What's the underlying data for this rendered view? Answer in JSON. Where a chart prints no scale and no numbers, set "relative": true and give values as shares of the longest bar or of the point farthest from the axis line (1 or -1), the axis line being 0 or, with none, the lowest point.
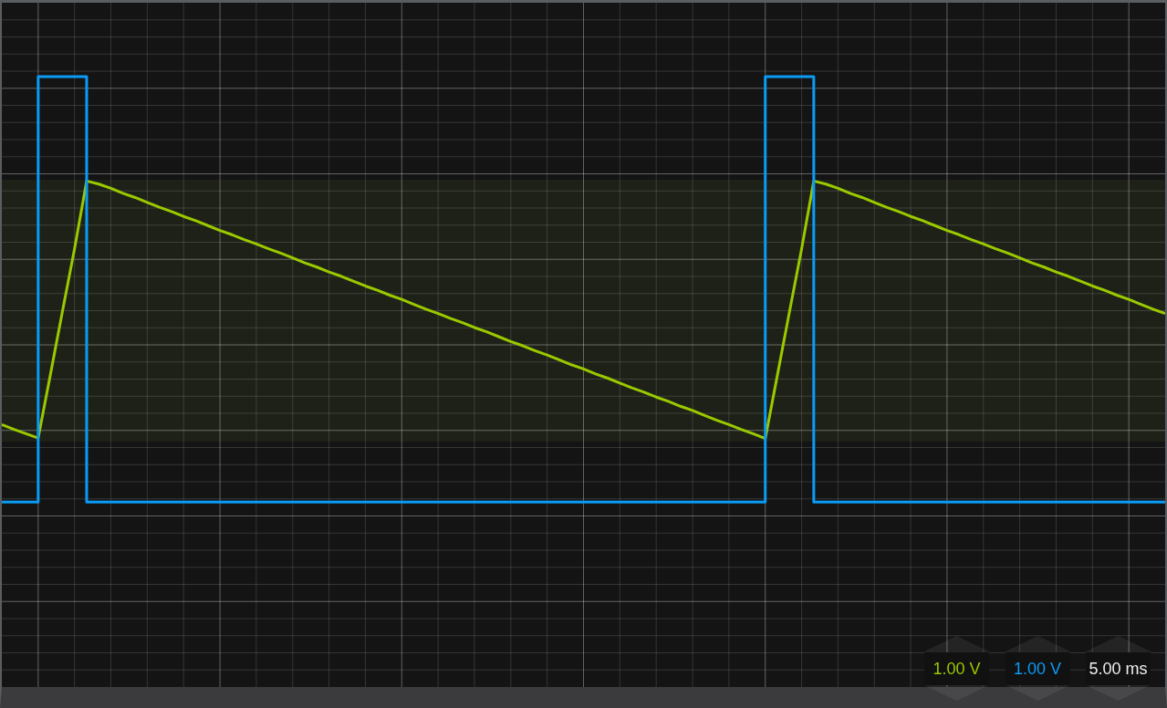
{
  "chart_data": {
    "type": "line",
    "relative": true,
    "categories": [
      null,
      null,
      null,
      null,
      null,
      null,
      null,
      null,
      null,
      null,
      null,
      null,
      null,
      null,
      null,
      null,
      null,
      null,
      null,
      null,
      null,
      null,
      null,
      null,
      null,
      null,
      null,
      null,
      null,
      null,
      null,
      null,
      null,
      null,
      null,
      null,
      null,
      null,
      null,
      null,
      null,
      null,
      null,
      null,
      null,
      null,
      null,
      null,
      null,
      null,
      null,
      null,
      null,
      null,
      null,
      null,
      null,
      null,
      null,
      null,
      null,
      null,
      null,
      null,
      null,
      null,
      null,
      null,
      null,
      null,
      null,
      null,
      null,
      null,
      null,
      null,
      null,
      null,
      null,
      null,
      null,
      null,
      null,
      null,
      null,
      null,
      null,
      null,
      null,
      null,
      null,
      null,
      null,
      null,
      null,
      null,
      null
    ],
    "series": [
      {
        "name": "1.00 V",
        "color": "#9bc900",
        "values": [
          0.43,
          0.422,
          0.415,
          0.408,
          0.511,
          0.615,
          0.718,
          0.829,
          0.824,
          0.817,
          0.809,
          0.802,
          0.794,
          0.786,
          0.779,
          0.771,
          0.764,
          0.756,
          0.748,
          0.741,
          0.733,
          0.726,
          0.718,
          0.711,
          0.703,
          0.695,
          0.688,
          0.68,
          0.673,
          0.665,
          0.657,
          0.65,
          0.642,
          0.635,
          0.627,
          0.619,
          0.612,
          0.604,
          0.597,
          0.589,
          0.582,
          0.574,
          0.566,
          0.559,
          0.551,
          0.544,
          0.536,
          0.528,
          0.521,
          0.513,
          0.506,
          0.498,
          0.49,
          0.483,
          0.475,
          0.468,
          0.46,
          0.453,
          0.445,
          0.437,
          0.43,
          0.422,
          0.415,
          0.407,
          0.511,
          0.615,
          0.718,
          0.829,
          0.824,
          0.817,
          0.809,
          0.802,
          0.794,
          0.786,
          0.779,
          0.771,
          0.764,
          0.756,
          0.748,
          0.741,
          0.733,
          0.726,
          0.718,
          0.711,
          0.703,
          0.695,
          0.688,
          0.68,
          0.673,
          0.665,
          0.657,
          0.65,
          0.642,
          0.635,
          0.627,
          0.619,
          0.612
        ]
      },
      {
        "name": "1.00 V",
        "color": "#0a9cf5",
        "type": "step",
        "values": [
          0.303,
          0.303,
          0.303,
          1,
          1,
          1,
          1,
          0.303,
          0.303,
          0.303,
          0.303,
          0.303,
          0.303,
          0.303,
          0.303,
          0.303,
          0.303,
          0.303,
          0.303,
          0.303,
          0.303,
          0.303,
          0.303,
          0.303,
          0.303,
          0.303,
          0.303,
          0.303,
          0.303,
          0.303,
          0.303,
          0.303,
          0.303,
          0.303,
          0.303,
          0.303,
          0.303,
          0.303,
          0.303,
          0.303,
          0.303,
          0.303,
          0.303,
          0.303,
          0.303,
          0.303,
          0.303,
          0.303,
          0.303,
          0.303,
          0.303,
          0.303,
          0.303,
          0.303,
          0.303,
          0.303,
          0.303,
          0.303,
          0.303,
          0.303,
          0.303,
          0.303,
          0.303,
          1,
          1,
          1,
          1,
          0.303,
          0.303,
          0.303,
          0.303,
          0.303,
          0.303,
          0.303,
          0.303,
          0.303,
          0.303,
          0.303,
          0.303,
          0.303,
          0.303,
          0.303,
          0.303,
          0.303,
          0.303,
          0.303,
          0.303,
          0.303,
          0.303,
          0.303,
          0.303,
          0.303,
          0.303,
          0.303,
          0.303,
          0.303,
          0.303
        ]
      }
    ],
    "bands": [
      {
        "axis": "y",
        "from": 0.402,
        "to": 0.831,
        "color": "#1e2117"
      }
    ],
    "annotations": [
      "5.00 ms"
    ],
    "grid": true,
    "legend": "bottom right",
    "marker": "none",
    "line_style": "solid"
  }
}
